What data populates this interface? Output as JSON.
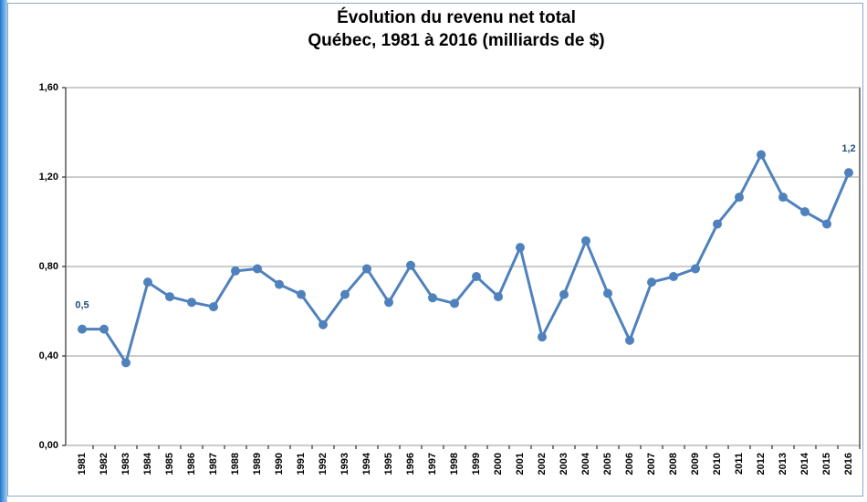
{
  "chart_data": {
    "type": "line",
    "title": "Évolution du revenu net total",
    "subtitle": "Québec, 1981 à 2016 (milliards de $)",
    "categories": [
      "1981",
      "1982",
      "1983",
      "1984",
      "1985",
      "1986",
      "1987",
      "1988",
      "1989",
      "1990",
      "1991",
      "1992",
      "1993",
      "1994",
      "1995",
      "1996",
      "1997",
      "1998",
      "1999",
      "2000",
      "2001",
      "2002",
      "2003",
      "2004",
      "2005",
      "2006",
      "2007",
      "2008",
      "2009",
      "2010",
      "2011",
      "2012",
      "2013",
      "2014",
      "2015",
      "2016"
    ],
    "series": [
      {
        "name": "Revenu net total",
        "color": "#4f81bd",
        "values": [
          0.52,
          0.52,
          0.37,
          0.73,
          0.665,
          0.64,
          0.62,
          0.78,
          0.79,
          0.72,
          0.675,
          0.54,
          0.675,
          0.79,
          0.64,
          0.805,
          0.66,
          0.635,
          0.755,
          0.665,
          0.885,
          0.485,
          0.675,
          0.915,
          0.68,
          0.47,
          0.73,
          0.755,
          0.79,
          0.99,
          1.11,
          1.3,
          1.11,
          1.045,
          0.99,
          1.22
        ],
        "value_labels": [
          "0,5",
          null,
          null,
          null,
          null,
          null,
          null,
          null,
          null,
          null,
          null,
          null,
          null,
          null,
          null,
          null,
          null,
          null,
          null,
          null,
          null,
          null,
          null,
          null,
          null,
          null,
          null,
          null,
          null,
          null,
          null,
          null,
          null,
          null,
          null,
          "1,2"
        ]
      }
    ],
    "ylim": [
      0,
      1.6
    ],
    "yticks": [
      {
        "value": 0,
        "label": "0,00"
      },
      {
        "value": 0.4,
        "label": "0,40"
      },
      {
        "value": 0.8,
        "label": "0,80"
      },
      {
        "value": 1.2,
        "label": "1,20"
      },
      {
        "value": 1.6,
        "label": "1,60"
      }
    ],
    "grid": true
  }
}
